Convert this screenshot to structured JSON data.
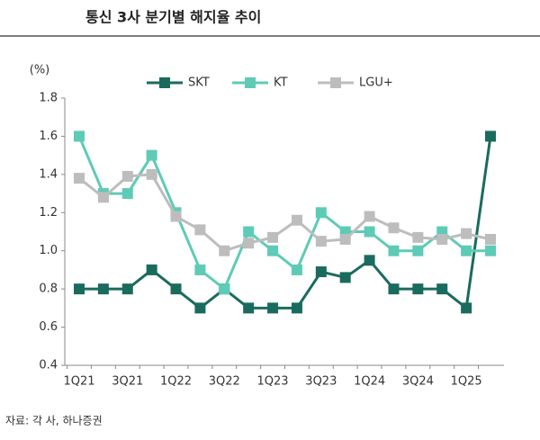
{
  "chart_data": {
    "type": "line",
    "title": "통신 3사 분기별 해지율 추이",
    "y_label": "(%)",
    "source": "자료: 각 사, 하나증권",
    "categories": [
      "1Q21",
      null,
      "3Q21",
      null,
      "1Q22",
      null,
      "3Q22",
      null,
      "1Q23",
      null,
      "3Q23",
      null,
      "1Q24",
      null,
      "3Q24",
      null,
      "1Q25",
      null
    ],
    "series": [
      {
        "name": "SKT",
        "color": "#1a6b5e",
        "values": [
          0.8,
          0.8,
          0.8,
          0.9,
          0.8,
          0.7,
          0.8,
          0.7,
          0.7,
          0.7,
          0.89,
          0.86,
          0.95,
          0.8,
          0.8,
          0.8,
          0.7,
          1.6
        ]
      },
      {
        "name": "KT",
        "color": "#5ecbb6",
        "values": [
          1.6,
          1.3,
          1.3,
          1.5,
          1.2,
          0.9,
          0.8,
          1.1,
          1.0,
          0.9,
          1.2,
          1.1,
          1.1,
          1.0,
          1.0,
          1.1,
          1.0,
          1.0
        ]
      },
      {
        "name": "LGU+",
        "color": "#bdbdbd",
        "values": [
          1.38,
          1.28,
          1.39,
          1.4,
          1.18,
          1.11,
          1.0,
          1.04,
          1.07,
          1.16,
          1.05,
          1.06,
          1.18,
          1.12,
          1.07,
          1.06,
          1.09,
          1.06
        ]
      }
    ],
    "ylim": [
      0.4,
      1.8
    ],
    "yticks": [
      0.4,
      0.6,
      0.8,
      {
        "value": 1,
        "label": "1.0"
      },
      1.2,
      1.4,
      1.6,
      1.8
    ]
  }
}
